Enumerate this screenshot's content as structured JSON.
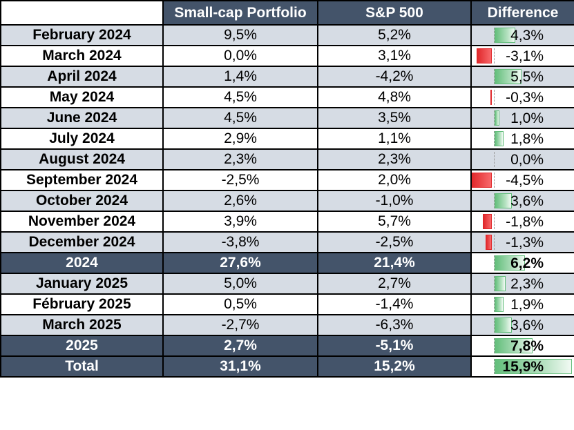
{
  "header": {
    "col1": "Small-cap Portfolio",
    "col2": "S&P 500",
    "col3": "Difference"
  },
  "rows": [
    {
      "label": "February 2024",
      "small": "9,5%",
      "sp": "5,2%",
      "diff": "4,3%",
      "diff_value": 4.3,
      "type": "shaded"
    },
    {
      "label": "March 2024",
      "small": "0,0%",
      "sp": "3,1%",
      "diff": "-3,1%",
      "diff_value": -3.1,
      "type": "plain"
    },
    {
      "label": "April 2024",
      "small": "1,4%",
      "sp": "-4,2%",
      "diff": "5,5%",
      "diff_value": 5.5,
      "type": "shaded"
    },
    {
      "label": "May 2024",
      "small": "4,5%",
      "sp": "4,8%",
      "diff": "-0,3%",
      "diff_value": -0.3,
      "type": "plain"
    },
    {
      "label": "June 2024",
      "small": "4,5%",
      "sp": "3,5%",
      "diff": "1,0%",
      "diff_value": 1.0,
      "type": "shaded"
    },
    {
      "label": "July 2024",
      "small": "2,9%",
      "sp": "1,1%",
      "diff": "1,8%",
      "diff_value": 1.8,
      "type": "plain"
    },
    {
      "label": "August 2024",
      "small": "2,3%",
      "sp": "2,3%",
      "diff": "0,0%",
      "diff_value": 0.0,
      "type": "shaded"
    },
    {
      "label": "September 2024",
      "small": "-2,5%",
      "sp": "2,0%",
      "diff": "-4,5%",
      "diff_value": -4.5,
      "type": "plain"
    },
    {
      "label": "October 2024",
      "small": "2,6%",
      "sp": "-1,0%",
      "diff": "3,6%",
      "diff_value": 3.6,
      "type": "shaded"
    },
    {
      "label": "November 2024",
      "small": "3,9%",
      "sp": "5,7%",
      "diff": "-1,8%",
      "diff_value": -1.8,
      "type": "plain"
    },
    {
      "label": "December 2024",
      "small": "-3,8%",
      "sp": "-2,5%",
      "diff": "-1,3%",
      "diff_value": -1.3,
      "type": "shaded"
    },
    {
      "label": "2024",
      "small": "27,6%",
      "sp": "21,4%",
      "diff": "6,2%",
      "diff_value": 6.2,
      "type": "total"
    },
    {
      "label": "January 2025",
      "small": "5,0%",
      "sp": "2,7%",
      "diff": "2,3%",
      "diff_value": 2.3,
      "type": "shaded"
    },
    {
      "label": "Fébruary 2025",
      "small": "0,5%",
      "sp": "-1,4%",
      "diff": "1,9%",
      "diff_value": 1.9,
      "type": "plain"
    },
    {
      "label": "March 2025",
      "small": "-2,7%",
      "sp": "-6,3%",
      "diff": "3,6%",
      "diff_value": 3.6,
      "type": "shaded"
    },
    {
      "label": "2025",
      "small": "2,7%",
      "sp": "-5,1%",
      "diff": "7,8%",
      "diff_value": 7.8,
      "type": "total"
    },
    {
      "label": "Total",
      "small": "31,1%",
      "sp": "15,2%",
      "diff": "15,9%",
      "diff_value": 15.9,
      "type": "total"
    }
  ],
  "colors": {
    "header_bg": "#44546a",
    "shaded_bg": "#d6dce4",
    "positive_bar": "#63be7b",
    "negative_bar": "#e0282b"
  }
}
